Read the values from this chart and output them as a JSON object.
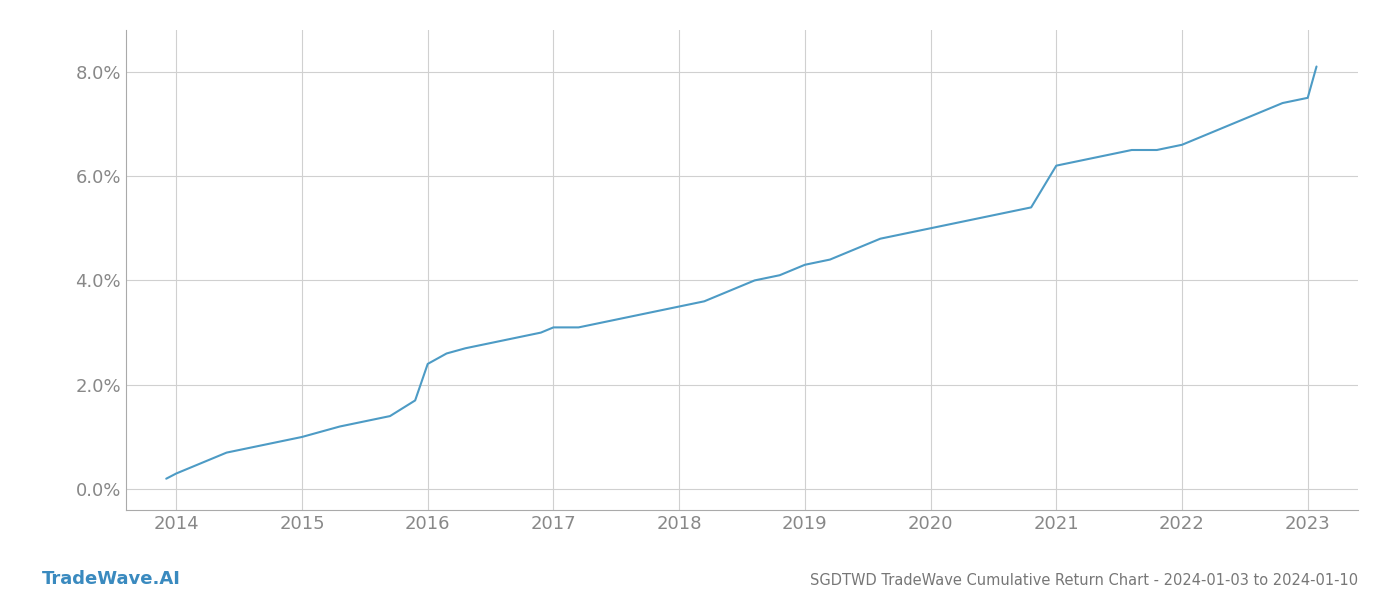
{
  "title": "SGDTWD TradeWave Cumulative Return Chart - 2024-01-03 to 2024-01-10",
  "watermark": "TradeWave.AI",
  "x_years": [
    2014,
    2015,
    2016,
    2017,
    2018,
    2019,
    2020,
    2021,
    2022,
    2023
  ],
  "y_ticks": [
    0.0,
    0.02,
    0.04,
    0.06,
    0.08
  ],
  "ylim": [
    -0.004,
    0.088
  ],
  "xlim": [
    2013.6,
    2023.4
  ],
  "line_color": "#4d9bc5",
  "line_width": 1.5,
  "background_color": "#ffffff",
  "grid_color": "#d0d0d0",
  "axis_label_color": "#888888",
  "title_color": "#777777",
  "watermark_color": "#3a8abf",
  "x_data": [
    2013.92,
    2014.0,
    2014.1,
    2014.2,
    2014.4,
    2014.6,
    2014.8,
    2015.0,
    2015.15,
    2015.3,
    2015.5,
    2015.7,
    2015.9,
    2016.0,
    2016.15,
    2016.3,
    2016.5,
    2016.7,
    2016.9,
    2017.0,
    2017.2,
    2017.4,
    2017.6,
    2017.8,
    2018.0,
    2018.2,
    2018.4,
    2018.6,
    2018.8,
    2019.0,
    2019.2,
    2019.4,
    2019.6,
    2019.8,
    2020.0,
    2020.2,
    2020.4,
    2020.6,
    2020.8,
    2021.0,
    2021.2,
    2021.4,
    2021.6,
    2021.8,
    2022.0,
    2022.2,
    2022.4,
    2022.6,
    2022.8,
    2023.0,
    2023.07
  ],
  "y_data": [
    0.002,
    0.003,
    0.004,
    0.005,
    0.007,
    0.008,
    0.009,
    0.01,
    0.011,
    0.012,
    0.013,
    0.014,
    0.017,
    0.024,
    0.026,
    0.027,
    0.028,
    0.029,
    0.03,
    0.031,
    0.031,
    0.032,
    0.033,
    0.034,
    0.035,
    0.036,
    0.038,
    0.04,
    0.041,
    0.043,
    0.044,
    0.046,
    0.048,
    0.049,
    0.05,
    0.051,
    0.052,
    0.053,
    0.054,
    0.062,
    0.063,
    0.064,
    0.065,
    0.065,
    0.066,
    0.068,
    0.07,
    0.072,
    0.074,
    0.075,
    0.081
  ]
}
